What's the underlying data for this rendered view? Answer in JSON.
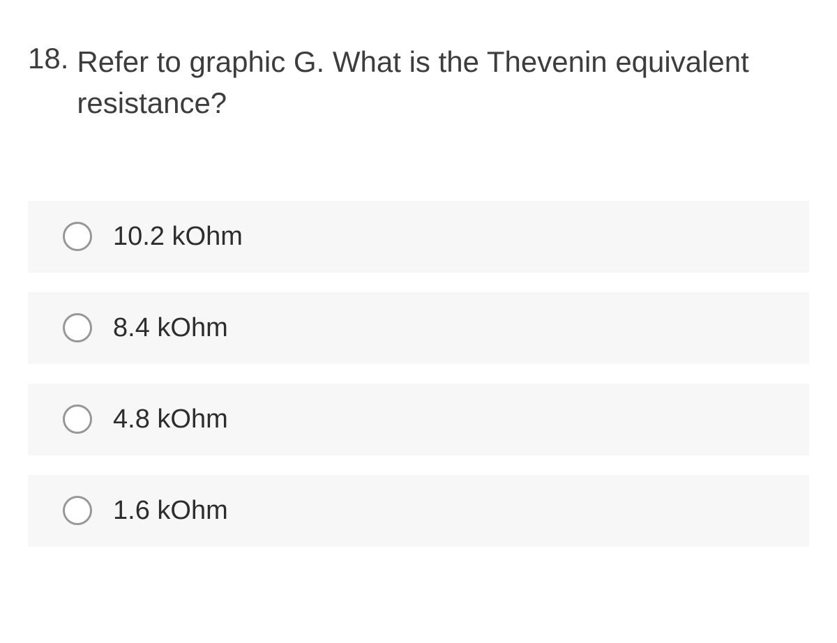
{
  "question": {
    "number": "18.",
    "text": "Refer to graphic G.  What is the Thevenin equivalent resistance?"
  },
  "options": [
    {
      "label": "10.2 kOhm",
      "selected": false
    },
    {
      "label": "8.4 kOhm",
      "selected": false
    },
    {
      "label": "4.8 kOhm",
      "selected": false
    },
    {
      "label": "1.6 kOhm",
      "selected": false
    }
  ],
  "styling": {
    "background_color": "#ffffff",
    "option_background_color": "#f7f7f7",
    "question_text_color": "#3d3d3d",
    "option_text_color": "#2d2d2d",
    "radio_border_color": "#979797",
    "question_fontsize": 42,
    "option_fontsize": 38,
    "radio_size": 42,
    "option_gap": 28
  }
}
